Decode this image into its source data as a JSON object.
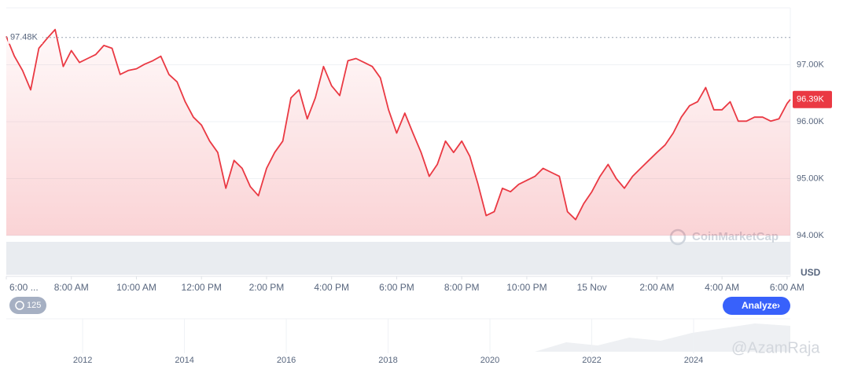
{
  "chart_data": {
    "type": "line",
    "series": [
      {
        "color": "#ea3943",
        "x": [
          6.0,
          6.25,
          6.5,
          6.75,
          7.0,
          7.25,
          7.5,
          7.75,
          8.0,
          8.25,
          8.5,
          8.75,
          9.0,
          9.25,
          9.5,
          9.75,
          10.0,
          10.25,
          10.5,
          10.75,
          11.0,
          11.25,
          11.5,
          11.75,
          12.0,
          12.25,
          12.5,
          12.75,
          13.0,
          13.25,
          13.5,
          13.75,
          14.0,
          14.25,
          14.5,
          14.75,
          15.0,
          15.25,
          15.5,
          15.75,
          16.0,
          16.25,
          16.5,
          16.75,
          17.0,
          17.25,
          17.5,
          17.75,
          18.0,
          18.25,
          18.5,
          18.75,
          19.0,
          19.25,
          19.5,
          19.75,
          20.0,
          20.25,
          20.5,
          20.75,
          21.0,
          21.25,
          21.5,
          21.75,
          22.0,
          22.25,
          22.5,
          22.75,
          23.0,
          23.25,
          23.5,
          23.75,
          24.0,
          24.25,
          24.5,
          24.75,
          25.0,
          25.25,
          25.5,
          25.75,
          26.0,
          26.25,
          26.5,
          26.75,
          27.0,
          27.25,
          27.5,
          27.75,
          28.0,
          28.25,
          28.5,
          28.75,
          29.0,
          29.25,
          29.5,
          29.75,
          30.0,
          30.1
        ],
        "values": [
          97500,
          97150,
          96900,
          96560,
          97290,
          97460,
          97620,
          96970,
          97250,
          97040,
          97110,
          97180,
          97340,
          97290,
          96830,
          96900,
          96930,
          97010,
          97070,
          97150,
          96830,
          96700,
          96350,
          96080,
          95940,
          95660,
          95460,
          94830,
          95320,
          95180,
          94860,
          94700,
          95180,
          95460,
          95660,
          96420,
          96560,
          96050,
          96420,
          96970,
          96630,
          96460,
          97070,
          97110,
          97040,
          96970,
          96770,
          96210,
          95800,
          96150,
          95800,
          95460,
          95040,
          95250,
          95660,
          95460,
          95660,
          95390,
          94900,
          94350,
          94420,
          94830,
          94770,
          94900,
          94970,
          95040,
          95180,
          95110,
          95040,
          94420,
          94280,
          94560,
          94770,
          95040,
          95250,
          95000,
          94830,
          95040,
          95180,
          95320,
          95460,
          95590,
          95800,
          96080,
          96280,
          96350,
          96600,
          96210,
          96210,
          96350,
          96010,
          96010,
          96080,
          96080,
          96010,
          96050,
          96320,
          96390
        ]
      }
    ],
    "xlim": [
      6,
      30.1
    ],
    "xticks": [
      {
        "value": 6,
        "label": "6:00 ..."
      },
      {
        "value": 8,
        "label": "8:00 AM"
      },
      {
        "value": 10,
        "label": "10:00 AM"
      },
      {
        "value": 12,
        "label": "12:00 PM"
      },
      {
        "value": 14,
        "label": "2:00 PM"
      },
      {
        "value": 16,
        "label": "4:00 PM"
      },
      {
        "value": 18,
        "label": "6:00 PM"
      },
      {
        "value": 20,
        "label": "8:00 PM"
      },
      {
        "value": 22,
        "label": "10:00 PM"
      },
      {
        "value": 24,
        "label": "15 Nov"
      },
      {
        "value": 26,
        "label": "2:00 AM"
      },
      {
        "value": 28,
        "label": "4:00 AM"
      },
      {
        "value": 30,
        "label": "6:00 AM"
      }
    ],
    "ylim": [
      94000,
      98000
    ],
    "yticks": [
      {
        "value": 94000,
        "label": "94.00K"
      },
      {
        "value": 95000,
        "label": "95.00K"
      },
      {
        "value": 96000,
        "label": "96.00K"
      },
      {
        "value": 97000,
        "label": "97.00K"
      }
    ],
    "y_axis_label": "USD",
    "high": {
      "value": 97480,
      "label": "97.48K"
    },
    "current": {
      "value": 96390,
      "label": "96.39K",
      "color": "#ea3943"
    },
    "grid": true,
    "navigator": {
      "xlim": [
        2010.5,
        2025.9
      ],
      "xticks": [
        2012,
        2014,
        2016,
        2018,
        2020,
        2022,
        2024
      ]
    }
  },
  "ui": {
    "zoom_badge": "125",
    "analyze_button": "Analyze",
    "watermark": "CoinMarketCap",
    "credit": "@AzamRaja"
  }
}
